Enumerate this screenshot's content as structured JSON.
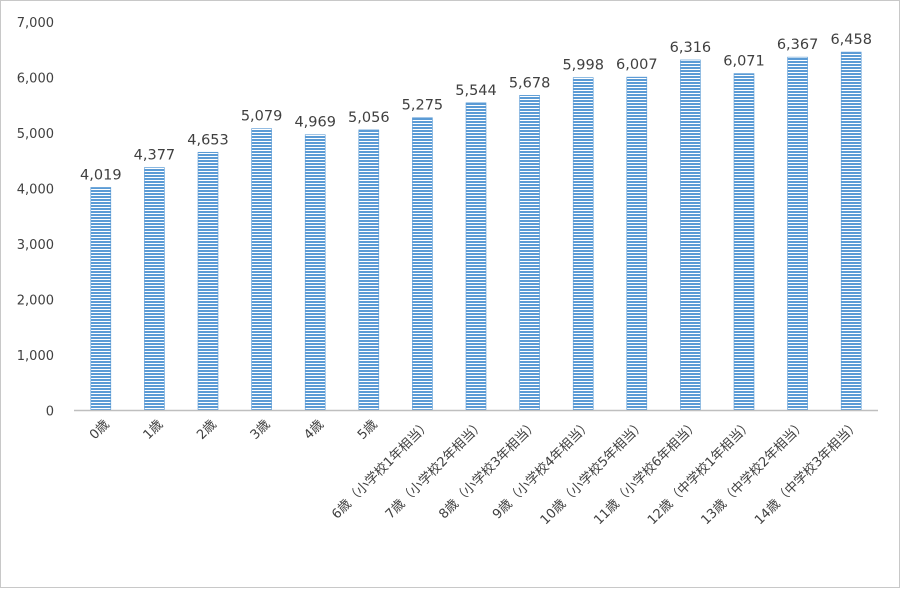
{
  "chart_data": {
    "type": "bar",
    "title": "",
    "xlabel": "",
    "ylabel": "",
    "ylim": [
      0,
      7000
    ],
    "yticks": [
      "0",
      "1,000",
      "2,000",
      "3,000",
      "4,000",
      "5,000",
      "6,000",
      "7,000"
    ],
    "ytick_values": [
      0,
      1000,
      2000,
      3000,
      4000,
      5000,
      6000,
      7000
    ],
    "grid": false,
    "legend": "none",
    "bar_color": "#5b9bd5",
    "bar_stripe_color": "#ffffff",
    "categories": [
      "0歳",
      "1歳",
      "2歳",
      "3歳",
      "4歳",
      "5歳",
      "6歳（小学校1年相当）",
      "7歳（小学校2年相当）",
      "8歳（小学校3年相当）",
      "9歳（小学校4年相当）",
      "10歳（小学校5年相当）",
      "11歳（小学校6年相当）",
      "12歳（中学校1年相当）",
      "13歳（中学校2年相当）",
      "14歳（中学校3年相当）"
    ],
    "values": [
      4019,
      4377,
      4653,
      5079,
      4969,
      5056,
      5275,
      5544,
      5678,
      5998,
      6007,
      6316,
      6071,
      6367,
      6458
    ],
    "value_labels": [
      "4,019",
      "4,377",
      "4,653",
      "5,079",
      "4,969",
      "5,056",
      "5,275",
      "5,544",
      "5,678",
      "5,998",
      "6,007",
      "6,316",
      "6,071",
      "6,367",
      "6,458"
    ]
  }
}
